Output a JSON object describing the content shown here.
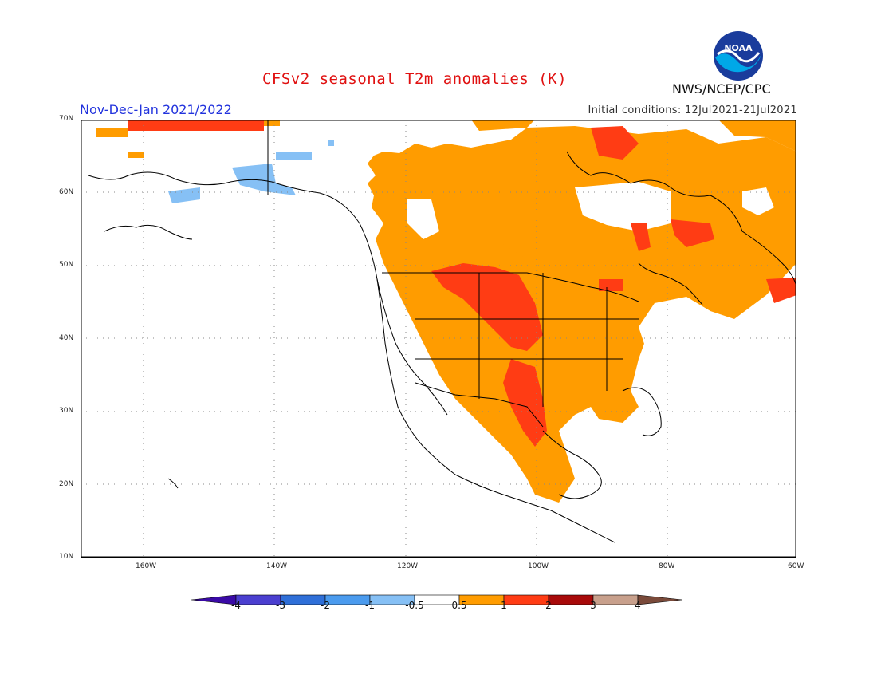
{
  "header": {
    "title": "CFSv2 seasonal T2m anomalies (K)",
    "period": "Nov-Dec-Jan 2021/2022",
    "initial_conditions": "Initial conditions: 12Jul2021-21Jul2021",
    "agency": "NWS/NCEP/CPC",
    "logo_text": "NOAA"
  },
  "map": {
    "lat_labels": [
      "70N",
      "60N",
      "50N",
      "40N",
      "30N",
      "20N",
      "10N"
    ],
    "lon_labels": [
      "160W",
      "140W",
      "120W",
      "100W",
      "80W",
      "60W"
    ]
  },
  "colorbar": {
    "labels": [
      "-4",
      "-3",
      "-2",
      "-1",
      "-0.5",
      "0.5",
      "1",
      "2",
      "3",
      "4"
    ],
    "colors": [
      "#3a0aa6",
      "#4b3fd0",
      "#2f6fd8",
      "#4b9bee",
      "#86c0f5",
      "#ffffff",
      "#ff9c00",
      "#ff3c14",
      "#a80a0a",
      "#c8a08c",
      "#7a4a3a"
    ]
  },
  "legend_colors": {
    "light_blue": "#86c0f5",
    "orange": "#ff9c00",
    "red_orange": "#ff3c14"
  }
}
